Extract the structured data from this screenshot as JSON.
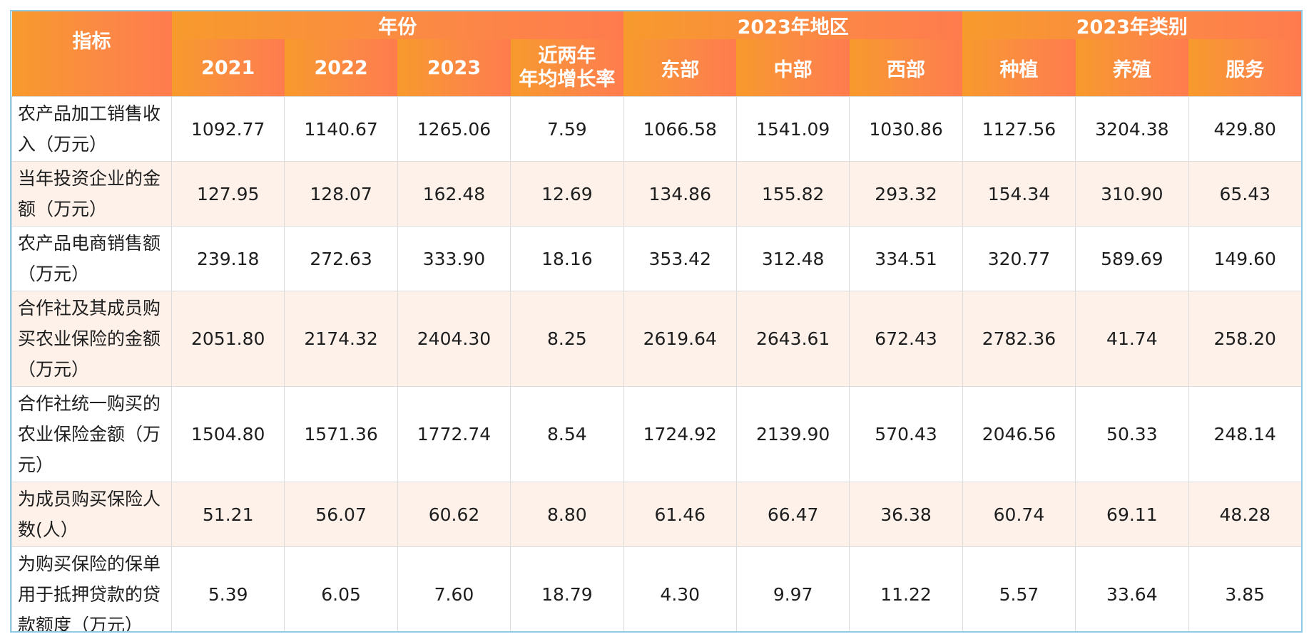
{
  "header": {
    "indicator": "指标",
    "groups": [
      "年份",
      "2023年地区",
      "2023年类别"
    ],
    "columns": [
      "2021",
      "2022",
      "2023",
      "近两年\n年均增长率",
      "东部",
      "中部",
      "西部",
      "种植",
      "养殖",
      "服务"
    ]
  },
  "rows": [
    {
      "label": "农产品加工销售收入（万元）",
      "values": [
        "1092.77",
        "1140.67",
        "1265.06",
        "7.59",
        "1066.58",
        "1541.09",
        "1030.86",
        "1127.56",
        "3204.38",
        "429.80"
      ]
    },
    {
      "label": "当年投资企业的金额（万元）",
      "values": [
        "127.95",
        "128.07",
        "162.48",
        "12.69",
        "134.86",
        "155.82",
        "293.32",
        "154.34",
        "310.90",
        "65.43"
      ]
    },
    {
      "label": "农产品电商销售额（万元）",
      "values": [
        "239.18",
        "272.63",
        "333.90",
        "18.16",
        "353.42",
        "312.48",
        "334.51",
        "320.77",
        "589.69",
        "149.60"
      ]
    },
    {
      "label": "合作社及其成员购买农业保险的金额（万元）",
      "values": [
        "2051.80",
        "2174.32",
        "2404.30",
        "8.25",
        "2619.64",
        "2643.61",
        "672.43",
        "2782.36",
        "41.74",
        "258.20"
      ]
    },
    {
      "label": "合作社统一购买的农业保险金额（万元）",
      "values": [
        "1504.80",
        "1571.36",
        "1772.74",
        "8.54",
        "1724.92",
        "2139.90",
        "570.43",
        "2046.56",
        "50.33",
        "248.14"
      ]
    },
    {
      "label": "为成员购买保险人数(人）",
      "values": [
        "51.21",
        "56.07",
        "60.62",
        "8.80",
        "61.46",
        "66.47",
        "36.38",
        "60.74",
        "69.11",
        "48.28"
      ]
    },
    {
      "label": "为购买保险的保单用于抵押贷款的贷款额度（万元）",
      "values": [
        "5.39",
        "6.05",
        "7.60",
        "18.79",
        "4.30",
        "9.97",
        "11.22",
        "5.57",
        "33.64",
        "3.85"
      ]
    }
  ]
}
